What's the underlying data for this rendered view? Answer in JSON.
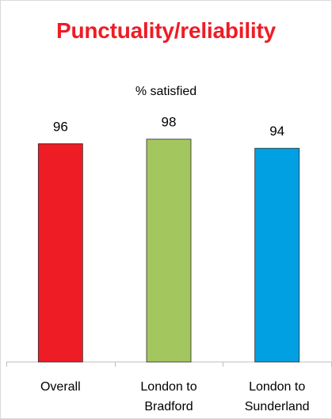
{
  "chart_data": {
    "type": "bar",
    "title": "Punctuality/reliability",
    "subtitle": "% satisfied",
    "categories": [
      [
        "Overall"
      ],
      [
        "London to",
        "Bradford"
      ],
      [
        "London to",
        "Sunderland"
      ]
    ],
    "values": [
      96,
      98,
      94
    ],
    "colors": [
      "#ee1c25",
      "#a4c65e",
      "#00a0e3"
    ],
    "ylim": [
      0,
      100
    ],
    "grid": false,
    "legend": "none",
    "data_labels": true
  }
}
